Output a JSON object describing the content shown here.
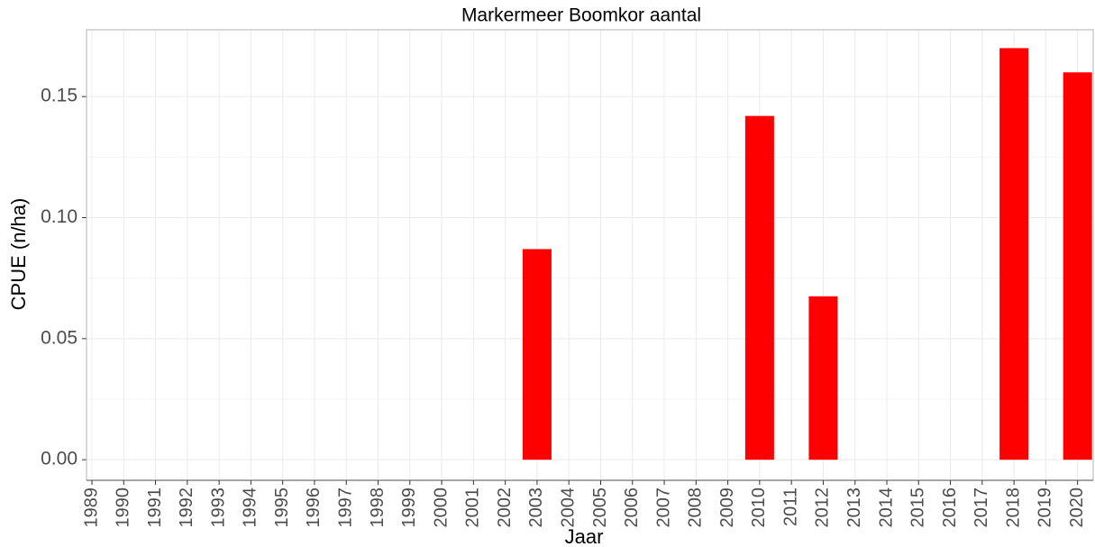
{
  "chart_data": {
    "type": "bar",
    "title": "Markermeer Boomkor aantal",
    "xlabel": "Jaar",
    "ylabel": "CPUE (n/ha)",
    "categories": [
      "1989",
      "1990",
      "1991",
      "1992",
      "1993",
      "1994",
      "1995",
      "1996",
      "1997",
      "1998",
      "1999",
      "2000",
      "2001",
      "2002",
      "2003",
      "2004",
      "2005",
      "2006",
      "2007",
      "2008",
      "2009",
      "2010",
      "2011",
      "2012",
      "2013",
      "2014",
      "2015",
      "2016",
      "2017",
      "2018",
      "2019",
      "2020"
    ],
    "values": [
      0,
      0,
      0,
      0,
      0,
      0,
      0,
      0,
      0,
      0,
      0,
      0,
      0,
      0,
      0.087,
      0,
      0,
      0,
      0,
      0,
      0,
      0.142,
      0,
      0.0675,
      0,
      0,
      0,
      0,
      0,
      0.17,
      0,
      0.16
    ],
    "color": "#ff0000",
    "ylim": [
      -0.0085,
      0.1776
    ],
    "yticks": [
      {
        "value": 0,
        "label": "0.00"
      },
      {
        "value": 0.05,
        "label": "0.05"
      },
      {
        "value": 0.1,
        "label": "0.10"
      },
      {
        "value": 0.15,
        "label": "0.15"
      }
    ],
    "grid": true
  }
}
